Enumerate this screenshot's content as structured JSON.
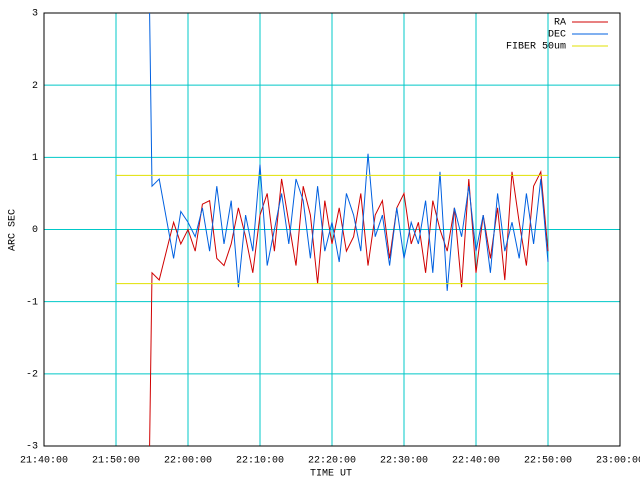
{
  "chart_data": {
    "type": "line",
    "xlabel": "TIME UT",
    "ylabel": "ARC SEC",
    "x": [
      "21:54:40",
      "21:55:00",
      "21:56:00",
      "21:57:00",
      "21:58:00",
      "21:59:00",
      "22:00:00",
      "22:01:00",
      "22:02:00",
      "22:03:00",
      "22:04:00",
      "22:05:00",
      "22:06:00",
      "22:07:00",
      "22:08:00",
      "22:09:00",
      "22:10:00",
      "22:11:00",
      "22:12:00",
      "22:13:00",
      "22:14:00",
      "22:15:00",
      "22:16:00",
      "22:17:00",
      "22:18:00",
      "22:19:00",
      "22:20:00",
      "22:21:00",
      "22:22:00",
      "22:23:00",
      "22:24:00",
      "22:25:00",
      "22:26:00",
      "22:27:00",
      "22:28:00",
      "22:29:00",
      "22:30:00",
      "22:31:00",
      "22:32:00",
      "22:33:00",
      "22:34:00",
      "22:35:00",
      "22:36:00",
      "22:37:00",
      "22:38:00",
      "22:39:00",
      "22:40:00",
      "22:41:00",
      "22:42:00",
      "22:43:00",
      "22:44:00",
      "22:45:00",
      "22:46:00",
      "22:47:00",
      "22:48:00",
      "22:49:00",
      "22:50:00"
    ],
    "series": [
      {
        "name": "RA",
        "color": "#d00000",
        "values": [
          -3,
          -0.6,
          -0.7,
          -0.3,
          0.1,
          -0.2,
          0.0,
          -0.3,
          0.35,
          0.4,
          -0.4,
          -0.5,
          -0.2,
          0.3,
          -0.1,
          -0.6,
          0.2,
          0.5,
          -0.3,
          0.7,
          0.1,
          -0.5,
          0.6,
          0.2,
          -0.75,
          0.4,
          -0.2,
          0.3,
          -0.3,
          -0.1,
          0.5,
          -0.5,
          0.2,
          0.4,
          -0.4,
          0.3,
          0.5,
          -0.2,
          0.1,
          -0.6,
          0.4,
          0.0,
          -0.3,
          0.3,
          -0.8,
          0.7,
          -0.6,
          0.2,
          -0.4,
          0.3,
          -0.7,
          0.8,
          0.1,
          -0.5,
          0.6,
          0.8,
          -0.3
        ]
      },
      {
        "name": "DEC",
        "color": "#0060e0",
        "values": [
          3,
          0.6,
          0.7,
          0.15,
          -0.4,
          0.25,
          0.1,
          -0.1,
          0.3,
          -0.3,
          0.6,
          -0.2,
          0.4,
          -0.8,
          0.2,
          -0.3,
          0.9,
          -0.5,
          0.0,
          0.5,
          -0.2,
          0.7,
          0.4,
          -0.4,
          0.6,
          -0.3,
          0.1,
          -0.45,
          0.5,
          0.2,
          -0.3,
          1.05,
          -0.1,
          0.2,
          -0.5,
          0.3,
          -0.4,
          0.1,
          -0.2,
          0.4,
          -0.6,
          0.8,
          -0.85,
          0.3,
          -0.1,
          0.6,
          -0.3,
          0.2,
          -0.6,
          0.5,
          -0.3,
          0.1,
          -0.4,
          0.5,
          -0.2,
          0.7,
          -0.45
        ]
      },
      {
        "name": "FIBER 50um",
        "color": "#e0e000",
        "x": [
          "21:50:00",
          "22:50:00",
          null,
          "21:50:00",
          "22:50:00"
        ],
        "values": [
          0.75,
          0.75,
          null,
          -0.75,
          -0.75
        ]
      }
    ],
    "xlim": [
      "21:40:00",
      "23:00:00"
    ],
    "xticks": [
      "21:40:00",
      "21:50:00",
      "22:00:00",
      "22:10:00",
      "22:20:00",
      "22:30:00",
      "22:40:00",
      "22:50:00",
      "23:00:00"
    ],
    "ylim": [
      -3,
      3
    ],
    "yticks": [
      -3,
      -2,
      -1,
      0,
      1,
      2,
      3
    ],
    "grid": true,
    "grid_color": "#00c8c8",
    "legend": "top-right"
  }
}
